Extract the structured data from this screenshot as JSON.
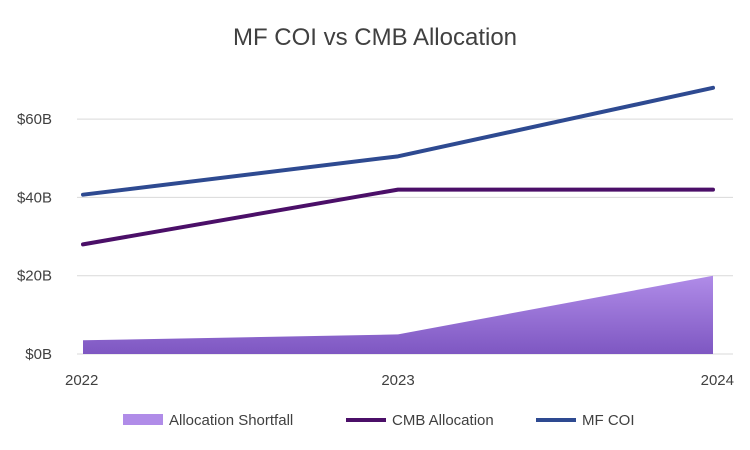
{
  "chart_data": {
    "type": "area",
    "title": "MF COI vs CMB Allocation",
    "xlabel": "",
    "ylabel": "",
    "x": [
      "2022",
      "2023",
      "2024"
    ],
    "ylim": [
      0,
      70
    ],
    "y_ticks": [
      {
        "value": 0,
        "label": "$0B"
      },
      {
        "value": 20,
        "label": "$20B"
      },
      {
        "value": 40,
        "label": "$40B"
      },
      {
        "value": 60,
        "label": "$60B"
      }
    ],
    "grid": "horizontal",
    "legend_position": "bottom",
    "series": [
      {
        "name": "Allocation Shortfall",
        "kind": "area",
        "color": "#7e57c2",
        "values": [
          3.5,
          5,
          20
        ]
      },
      {
        "name": "CMB Allocation",
        "kind": "line",
        "color": "#4b0f68",
        "values": [
          28,
          42,
          42
        ]
      },
      {
        "name": "MF COI",
        "kind": "line",
        "color": "#2e4a91",
        "values": [
          40.7,
          50.5,
          68
        ]
      }
    ]
  }
}
